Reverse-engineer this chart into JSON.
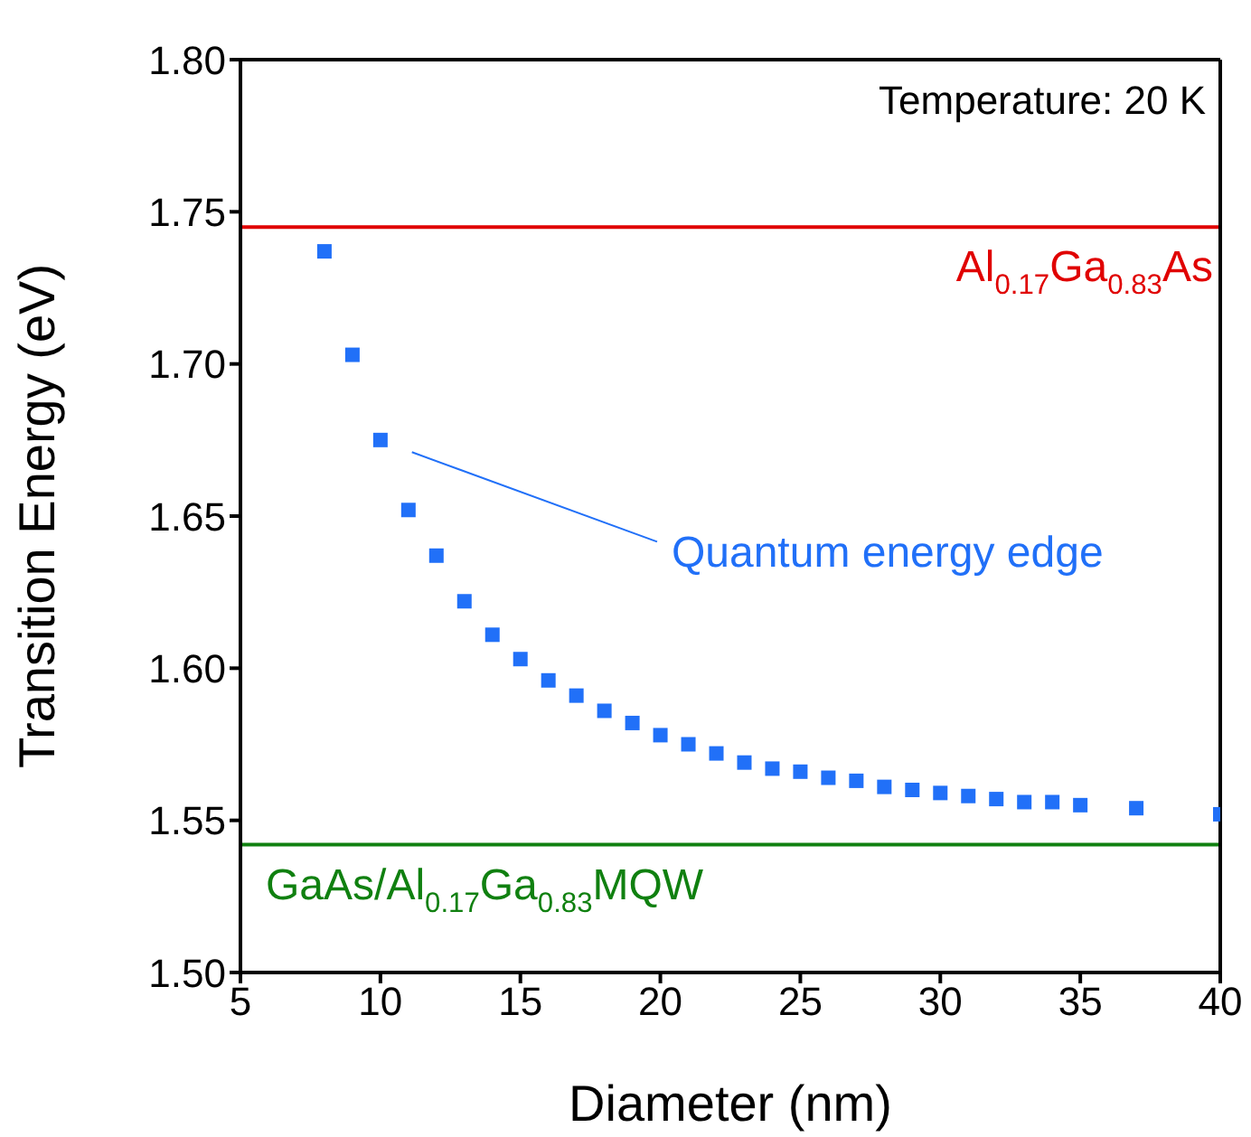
{
  "chart_data": {
    "type": "scatter",
    "xlabel": "Diameter (nm)",
    "ylabel": "Transition Energy (eV)",
    "x": [
      8,
      9,
      10,
      11,
      12,
      13,
      14,
      15,
      16,
      17,
      18,
      19,
      20,
      21,
      22,
      23,
      24,
      25,
      26,
      27,
      28,
      29,
      30,
      31,
      32,
      33,
      34,
      35,
      37,
      40
    ],
    "series": [
      {
        "color": "#2170f8",
        "values": [
          1.737,
          1.703,
          1.675,
          1.652,
          1.637,
          1.622,
          1.611,
          1.603,
          1.596,
          1.591,
          1.586,
          1.582,
          1.578,
          1.575,
          1.572,
          1.569,
          1.567,
          1.566,
          1.564,
          1.563,
          1.561,
          1.56,
          1.559,
          1.558,
          1.557,
          1.556,
          1.556,
          1.555,
          1.554,
          1.552
        ]
      }
    ],
    "marker": "square",
    "xlim": [
      5,
      40
    ],
    "xticks": [
      5,
      10,
      15,
      20,
      25,
      30,
      35,
      40
    ],
    "ylim": [
      1.5,
      1.8
    ],
    "yticks": [
      {
        "value": 1.5,
        "label": "1.50"
      },
      {
        "value": 1.55,
        "label": "1.55"
      },
      {
        "value": 1.6,
        "label": "1.60"
      },
      {
        "value": 1.65,
        "label": "1.65"
      },
      {
        "value": 1.7,
        "label": "1.70"
      },
      {
        "value": 1.75,
        "label": "1.75"
      },
      {
        "value": 1.8,
        "label": "1.80"
      }
    ],
    "ref_lines": [
      {
        "axis": "y",
        "value": 1.745,
        "label": "Al$_{0.17}$Ga$_{0.83}$As",
        "color": "#e00000"
      },
      {
        "axis": "y",
        "value": 1.542,
        "label": "GaAs/Al$_{0.17}$Ga$_{0.83}$MQW",
        "color": "#108010"
      }
    ],
    "annotations": [
      "Temperature: 20 K",
      "Quantum energy edge"
    ]
  }
}
